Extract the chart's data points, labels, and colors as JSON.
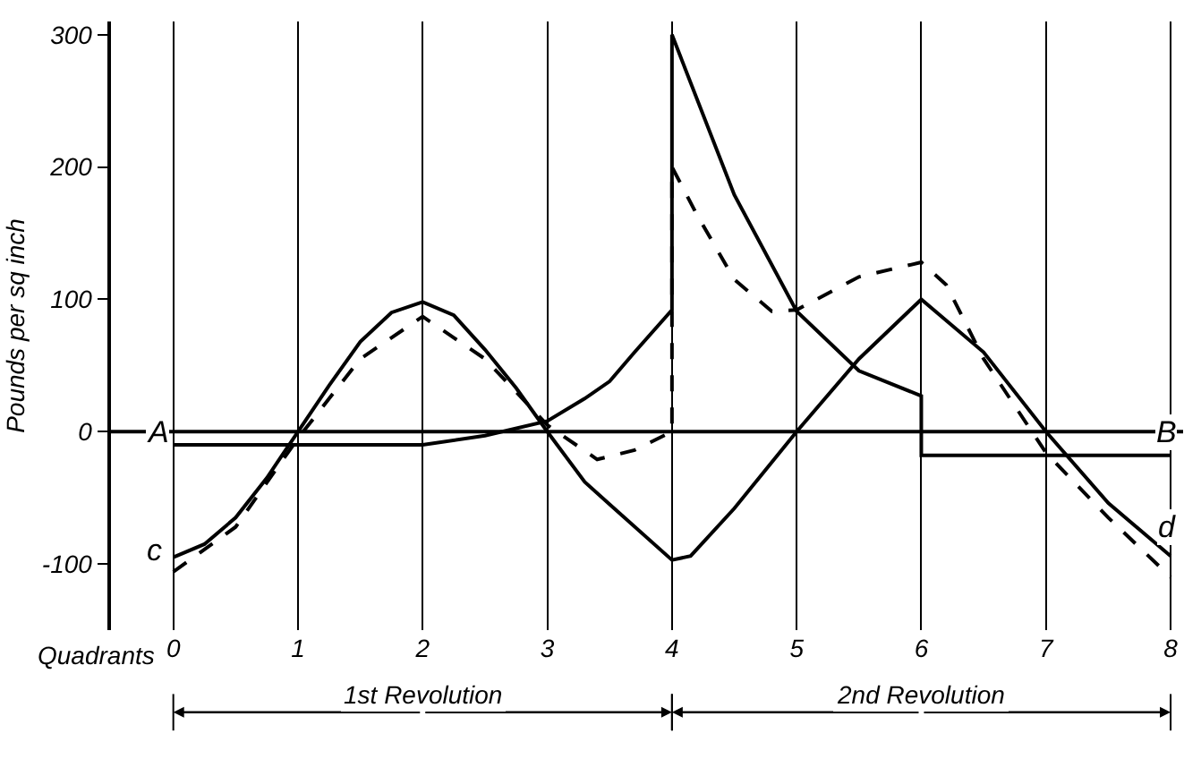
{
  "chart_data": {
    "type": "line",
    "ylabel": "Pounds per sq inch",
    "xlabel": "Quadrants",
    "xlim": [
      -0.5,
      8.1
    ],
    "xticks": [
      0,
      1,
      2,
      3,
      4,
      5,
      6,
      7,
      8
    ],
    "ylim": [
      -150,
      310
    ],
    "yticks": [
      -100,
      0,
      100,
      200,
      300
    ],
    "grid": "x",
    "marker": "none",
    "series": [
      {
        "color": "#000000",
        "line_style": "solid",
        "x": [
          0,
          0.25,
          0.5,
          0.75,
          1,
          1.25,
          1.5,
          1.75,
          2,
          2.25,
          2.5,
          2.75,
          3,
          3.3,
          3.5,
          4,
          4.15,
          4.5,
          5,
          5.5,
          6,
          6.5,
          7,
          7.5,
          8
        ],
        "values": [
          -95,
          -85,
          -65,
          -35,
          0,
          35,
          68,
          90,
          98,
          88,
          62,
          33,
          0,
          -38,
          -55,
          -97,
          -94,
          -58,
          0,
          55,
          100,
          60,
          0,
          -54,
          -94
        ]
      },
      {
        "color": "#000000",
        "line_style": "dashed",
        "x": [
          0,
          0.5,
          1,
          1.5,
          2,
          2.5,
          3,
          3.4,
          3.7,
          4,
          4,
          4.2,
          4.5,
          4.8,
          5,
          5.5,
          6,
          6.2,
          6.5,
          7,
          7.5,
          8
        ],
        "values": [
          -106,
          -72,
          -5,
          55,
          87,
          55,
          5,
          -21,
          -14,
          0,
          200,
          164,
          115,
          91,
          92,
          117,
          128,
          111,
          55,
          -16,
          -65,
          -110
        ]
      },
      {
        "color": "#000000",
        "line_style": "solid",
        "x": [
          0,
          2,
          2.5,
          3,
          3.3,
          3.5,
          3.7,
          4,
          4,
          4.5,
          5,
          5.5,
          6,
          6,
          8
        ],
        "values": [
          -10,
          -10,
          -3,
          8,
          25,
          38,
          60,
          92,
          300,
          179,
          91,
          46,
          27,
          -18,
          -18
        ]
      }
    ],
    "ref_lines": [
      {
        "axis": "y",
        "value": 0
      }
    ],
    "annotations": [
      "1st Revolution",
      "2nd Revolution",
      {
        "text": "A",
        "x": -0.12,
        "y": 0
      },
      {
        "text": "B",
        "x": 7.97,
        "y": 0
      },
      {
        "text": "c",
        "x": -0.15,
        "y": -90
      },
      {
        "text": "d",
        "x": 7.97,
        "y": -72
      }
    ]
  }
}
